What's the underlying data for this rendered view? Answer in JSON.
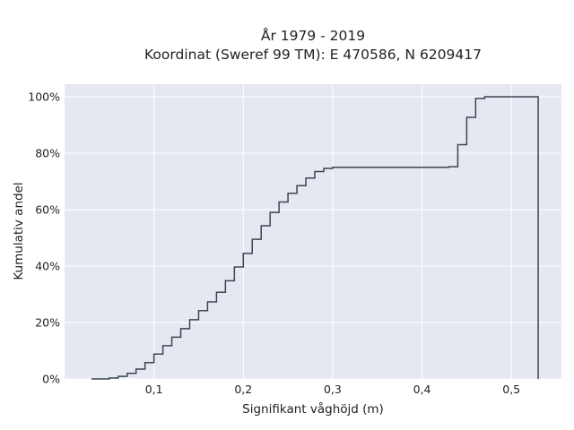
{
  "chart_data": {
    "type": "line",
    "subtype": "ecdf-step",
    "title_line1": "År 1979 - 2019",
    "title_line2": "Koordinat (Sweref 99 TM): E 470586, N 6209417",
    "xlabel": "Signifikant våghöjd (m)",
    "ylabel": "Kumulativ andel",
    "xlim": [
      0.0,
      0.556
    ],
    "ylim": [
      0,
      105
    ],
    "grid": true,
    "background": "#e5e8f0",
    "gridline_color": "#ffffff",
    "line_color": "#3a4655",
    "x_ticks": [
      {
        "value": 0.1,
        "label": "0,1"
      },
      {
        "value": 0.2,
        "label": "0,2"
      },
      {
        "value": 0.3,
        "label": "0,3"
      },
      {
        "value": 0.4,
        "label": "0,4"
      },
      {
        "value": 0.5,
        "label": "0,5"
      }
    ],
    "y_ticks": [
      {
        "value": 0,
        "label": "0%"
      },
      {
        "value": 20,
        "label": "20%"
      },
      {
        "value": 40,
        "label": "40%"
      },
      {
        "value": 60,
        "label": "60%"
      },
      {
        "value": 80,
        "label": "80%"
      },
      {
        "value": 100,
        "label": "100%"
      }
    ],
    "series": [
      {
        "x": [
          0.03,
          0.05,
          0.06,
          0.07,
          0.08,
          0.09,
          0.1,
          0.11,
          0.12,
          0.13,
          0.14,
          0.15,
          0.16,
          0.17,
          0.18,
          0.19,
          0.2,
          0.21,
          0.22,
          0.23,
          0.24,
          0.25,
          0.26,
          0.27,
          0.28,
          0.29,
          0.3,
          0.43,
          0.44,
          0.45,
          0.46,
          0.47,
          0.53,
          0.53
        ],
        "y": [
          0,
          0.3,
          0.9,
          2.0,
          3.5,
          5.8,
          8.8,
          11.8,
          14.8,
          17.8,
          21.0,
          24.2,
          27.3,
          30.7,
          34.8,
          39.7,
          44.5,
          49.5,
          54.3,
          59.0,
          62.7,
          65.8,
          68.5,
          71.2,
          73.5,
          74.6,
          75.0,
          75.2,
          83.0,
          92.7,
          99.4,
          100.0,
          100.0,
          0
        ]
      }
    ]
  }
}
